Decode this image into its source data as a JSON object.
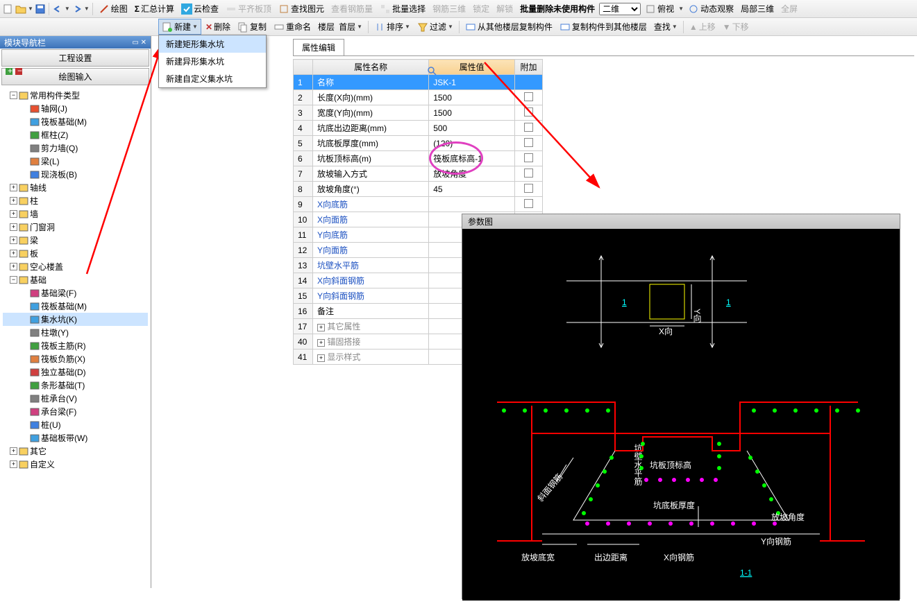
{
  "toolbar1": {
    "items": [
      "绘图",
      "汇总计算",
      "云检查",
      "平齐板顶",
      "查找图元",
      "查看钢筋量",
      "批量选择",
      "钢筋三维",
      "锁定",
      "解锁",
      "批量删除未使用构件"
    ],
    "view_mode": "二维",
    "view_items": [
      "俯视",
      "动态观察",
      "局部三维",
      "全屏"
    ]
  },
  "toolbar2": {
    "new_label": "新建",
    "items": [
      "删除",
      "复制",
      "重命名"
    ],
    "floor_label": "楼层",
    "floor_value": "首层",
    "sort_label": "排序",
    "filter_label": "过滤",
    "copy_from": "从其他楼层复制构件",
    "copy_to": "复制构件到其他楼层",
    "find_label": "查找",
    "up_label": "上移",
    "down_label": "下移"
  },
  "sidebar": {
    "title": "模块导航栏",
    "btn1": "工程设置",
    "btn2": "绘图输入",
    "tree": [
      {
        "indent": 0,
        "toggle": "-",
        "icon": "folder",
        "label": "常用构件类型"
      },
      {
        "indent": 1,
        "icon": "grid",
        "label": "轴网(J)"
      },
      {
        "indent": 1,
        "icon": "raft",
        "label": "筏板基础(M)"
      },
      {
        "indent": 1,
        "icon": "frame",
        "label": "框柱(Z)"
      },
      {
        "indent": 1,
        "icon": "wall",
        "label": "剪力墙(Q)"
      },
      {
        "indent": 1,
        "icon": "beam",
        "label": "梁(L)"
      },
      {
        "indent": 1,
        "icon": "cast",
        "label": "现浇板(B)"
      },
      {
        "indent": 0,
        "toggle": "+",
        "icon": "folder",
        "label": "轴线"
      },
      {
        "indent": 0,
        "toggle": "+",
        "icon": "folder",
        "label": "柱"
      },
      {
        "indent": 0,
        "toggle": "+",
        "icon": "folder",
        "label": "墙"
      },
      {
        "indent": 0,
        "toggle": "+",
        "icon": "folder",
        "label": "门窗洞"
      },
      {
        "indent": 0,
        "toggle": "+",
        "icon": "folder",
        "label": "梁"
      },
      {
        "indent": 0,
        "toggle": "+",
        "icon": "folder",
        "label": "板"
      },
      {
        "indent": 0,
        "toggle": "+",
        "icon": "folder",
        "label": "空心楼盖"
      },
      {
        "indent": 0,
        "toggle": "-",
        "icon": "folder",
        "label": "基础"
      },
      {
        "indent": 1,
        "icon": "fbeam",
        "label": "基础梁(F)"
      },
      {
        "indent": 1,
        "icon": "raft",
        "label": "筏板基础(M)"
      },
      {
        "indent": 1,
        "icon": "sump",
        "label": "集水坑(K)",
        "selected": true
      },
      {
        "indent": 1,
        "icon": "pier",
        "label": "柱墩(Y)"
      },
      {
        "indent": 1,
        "icon": "rebar1",
        "label": "筏板主筋(R)"
      },
      {
        "indent": 1,
        "icon": "rebar2",
        "label": "筏板负筋(X)"
      },
      {
        "indent": 1,
        "icon": "iso",
        "label": "独立基础(D)"
      },
      {
        "indent": 1,
        "icon": "strip",
        "label": "条形基础(T)"
      },
      {
        "indent": 1,
        "icon": "pile",
        "label": "桩承台(V)"
      },
      {
        "indent": 1,
        "icon": "cap",
        "label": "承台梁(F)"
      },
      {
        "indent": 1,
        "icon": "pillar",
        "label": "桩(U)"
      },
      {
        "indent": 1,
        "icon": "strap",
        "label": "基础板带(W)"
      },
      {
        "indent": 0,
        "toggle": "+",
        "icon": "folder",
        "label": "其它"
      },
      {
        "indent": 0,
        "toggle": "+",
        "icon": "folder",
        "label": "自定义"
      }
    ]
  },
  "dropdown": {
    "items": [
      "新建矩形集水坑",
      "新建异形集水坑",
      "新建自定义集水坑"
    ],
    "highlighted": 0
  },
  "tab": {
    "label": "属性编辑"
  },
  "prop_table": {
    "headers": [
      "属性名称",
      "属性值",
      "附加"
    ],
    "rows": [
      {
        "n": 1,
        "name": "名称",
        "val": "JSK-1",
        "sel": true
      },
      {
        "n": 2,
        "name": "长度(X向)(mm)",
        "val": "1500",
        "chk": true
      },
      {
        "n": 3,
        "name": "宽度(Y向)(mm)",
        "val": "1500",
        "chk": true
      },
      {
        "n": 4,
        "name": "坑底出边距离(mm)",
        "val": "500",
        "chk": true
      },
      {
        "n": 5,
        "name": "坑底板厚度(mm)",
        "val": "(120)",
        "chk": true
      },
      {
        "n": 6,
        "name": "坑板顶标高(m)",
        "val": "筏板底标高-1",
        "chk": true
      },
      {
        "n": 7,
        "name": "放坡输入方式",
        "val": "放坡角度",
        "chk": true
      },
      {
        "n": 8,
        "name": "放坡角度(°)",
        "val": "45",
        "chk": true
      },
      {
        "n": 9,
        "name": "X向底筋",
        "link": true,
        "chk": true
      },
      {
        "n": 10,
        "name": "X向面筋",
        "link": true,
        "chk": true
      },
      {
        "n": 11,
        "name": "Y向底筋",
        "link": true,
        "chk": true
      },
      {
        "n": 12,
        "name": "Y向面筋",
        "link": true,
        "chk": true
      },
      {
        "n": 13,
        "name": "坑壁水平筋",
        "link": true,
        "chk": true
      },
      {
        "n": 14,
        "name": "X向斜面钢筋",
        "link": true,
        "chk": true
      },
      {
        "n": 15,
        "name": "Y向斜面钢筋",
        "link": true,
        "chk": true
      },
      {
        "n": 16,
        "name": "备注",
        "chk": true
      },
      {
        "n": 17,
        "name": "其它属性",
        "gray": true,
        "exp": "+"
      },
      {
        "n": 40,
        "name": "锚固搭接",
        "gray": true,
        "exp": "+"
      },
      {
        "n": 41,
        "name": "显示样式",
        "gray": true,
        "exp": "+"
      }
    ]
  },
  "diagram": {
    "title": "参数图",
    "labels": {
      "top1": "1",
      "top2": "1",
      "xdir": "X向",
      "ydir": "Y向",
      "wall_rebar": "坑壁水平筋",
      "top_elev": "坑板顶标高",
      "bottom_thick": "坑底板厚度",
      "slope_angle": "放坡角度",
      "y_rebar": "Y向钢筋",
      "x_rebar": "X向钢筋",
      "slope_width": "放坡底宽",
      "edge_dist": "出边距离",
      "diag_rebar": "斜面钢筋",
      "section": "1-1"
    },
    "colors": {
      "bg": "#000",
      "red": "#ff0000",
      "green": "#00ff00",
      "magenta": "#ff00ff",
      "white": "#ffffff",
      "cyan": "#00ffff"
    }
  }
}
